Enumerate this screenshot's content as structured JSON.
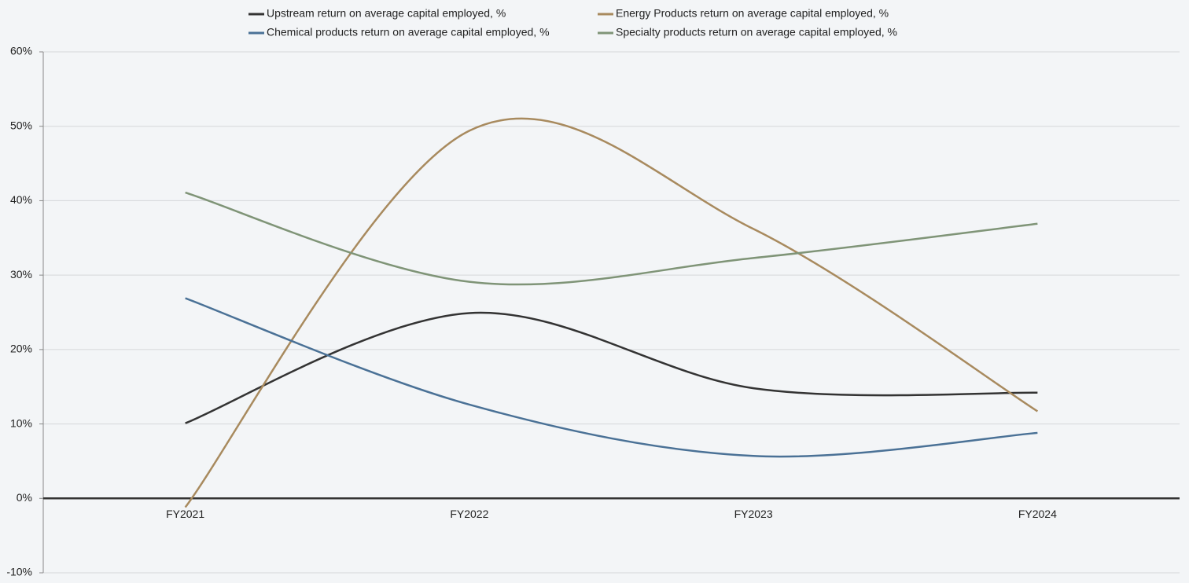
{
  "chart_data": {
    "type": "line",
    "categories": [
      "FY2021",
      "FY2022",
      "FY2023",
      "FY2024"
    ],
    "series": [
      {
        "name": "Upstream return on average capital employed, %",
        "color": "#333333",
        "values": [
          10.1,
          24.9,
          14.8,
          14.2
        ]
      },
      {
        "name": "Energy Products return on average capital employed, %",
        "color": "#a88a5e",
        "values": [
          -1.2,
          49.4,
          36.2,
          11.7
        ]
      },
      {
        "name": "Chemical products return on average capital employed, %",
        "color": "#4a7196",
        "values": [
          26.9,
          12.6,
          5.7,
          8.8
        ]
      },
      {
        "name": "Specialty products return on average capital employed, %",
        "color": "#7f9477",
        "values": [
          41.1,
          29.1,
          32.3,
          36.9
        ]
      }
    ],
    "ylim": [
      -10,
      60
    ],
    "yticks": [
      {
        "value": -10,
        "label": "-10%"
      },
      {
        "value": 0,
        "label": "0%"
      },
      {
        "value": 10,
        "label": "10%"
      },
      {
        "value": 20,
        "label": "20%"
      },
      {
        "value": 30,
        "label": "30%"
      },
      {
        "value": 40,
        "label": "40%"
      },
      {
        "value": 50,
        "label": "50%"
      },
      {
        "value": 60,
        "label": "60%"
      }
    ],
    "grid": true,
    "smooth": true
  }
}
